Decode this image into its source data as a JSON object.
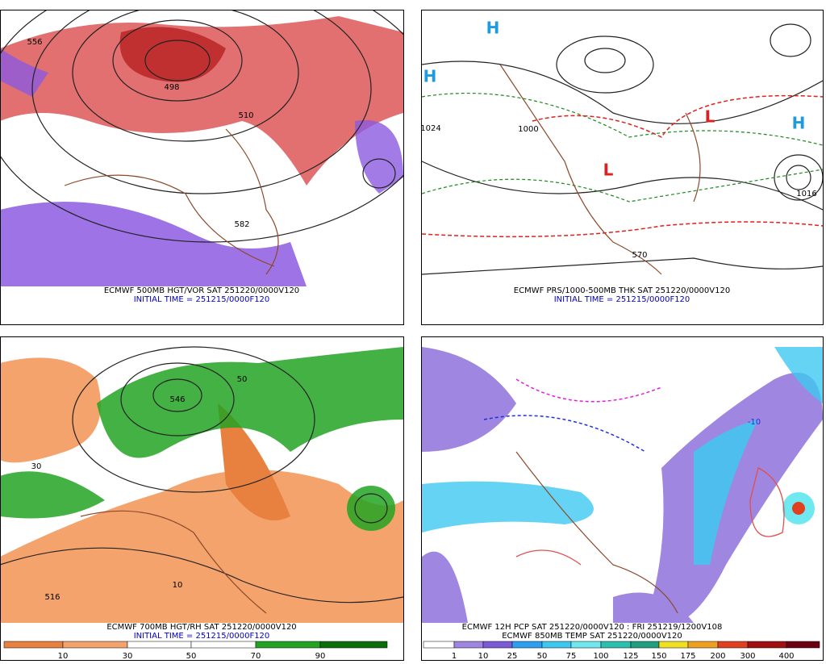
{
  "panels": [
    {
      "caption": "ECMWF 500MB HGT/VOR SAT 251220/0000V120",
      "initial_time": "INITIAL TIME = 251215/0000F120",
      "map_labels": [
        "556",
        "498",
        "510",
        "582"
      ]
    },
    {
      "caption": "ECMWF PRS/1000-500MB THK SAT 251220/0000V120",
      "initial_time": "INITIAL TIME = 251215/0000F120",
      "map_labels": [
        "H",
        "H",
        "H",
        "L",
        "L",
        "1024",
        "1000",
        "1016",
        "570"
      ]
    },
    {
      "caption": "ECMWF 700MB HGT/RH SAT 251220/0000V120",
      "initial_time": "INITIAL TIME = 251215/0000F120",
      "map_labels": [
        "546",
        "50",
        "30",
        "10",
        "516"
      ],
      "colorbar": {
        "labels": [
          "10",
          "30",
          "50",
          "70",
          "90"
        ],
        "colors": [
          "#e8813f",
          "#f3a36b",
          "#ffffff",
          "#ffffff",
          "#22a322",
          "#0b6e0b"
        ]
      }
    },
    {
      "caption": "ECMWF 12H PCP SAT 251220/0000V120 : FRI 251219/1200V108",
      "subcaption": "ECMWF 850MB TEMP SAT 251220/0000V120",
      "map_labels": [
        "-10"
      ],
      "colorbar": {
        "labels": [
          "1",
          "10",
          "25",
          "50",
          "75",
          "100",
          "125",
          "150",
          "175",
          "200",
          "300",
          "400"
        ],
        "colors": [
          "#ffffff",
          "#9f86e0",
          "#7b5cd6",
          "#2d9ff0",
          "#3ec8f0",
          "#6fe8f0",
          "#2bbfb0",
          "#1f9f7f",
          "#f0e020",
          "#f0a020",
          "#e04020",
          "#a01010",
          "#6a0010"
        ]
      }
    }
  ]
}
